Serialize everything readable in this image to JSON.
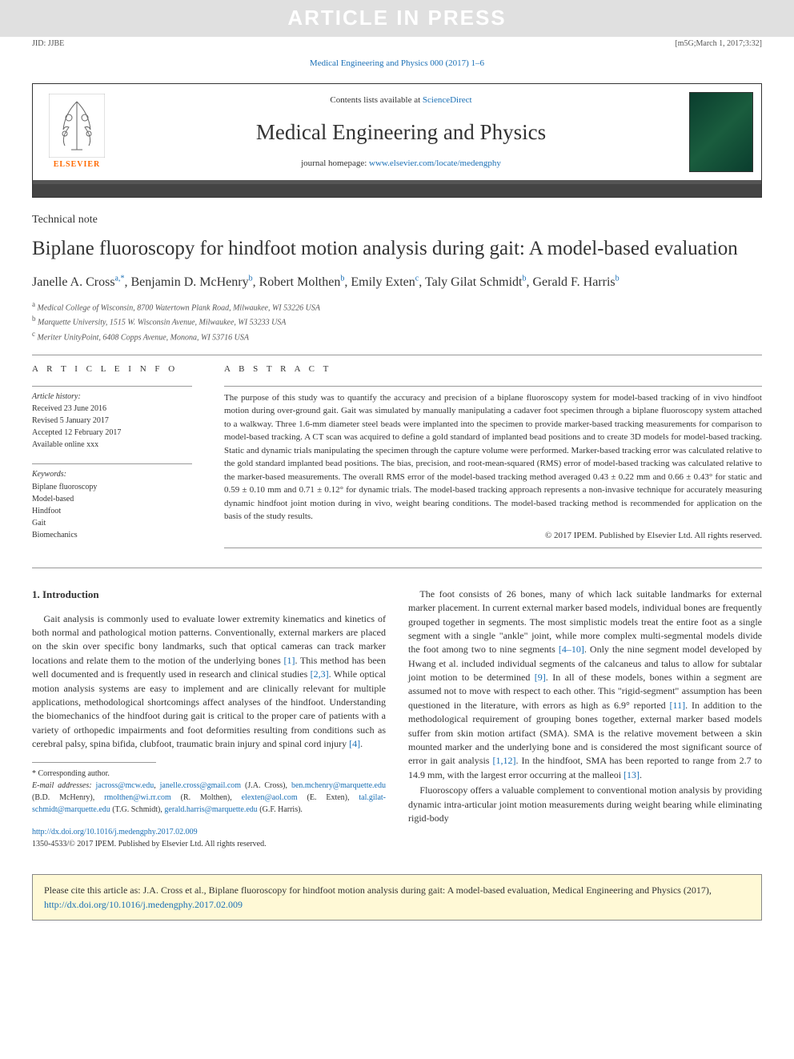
{
  "banner": {
    "watermark": "ARTICLE IN PRESS",
    "jid": "JID: JJBE",
    "version": "[m5G;March 1, 2017;3:32]",
    "citation": "Medical Engineering and Physics 000 (2017) 1–6"
  },
  "header": {
    "contents_prefix": "Contents lists available at ",
    "contents_link": "ScienceDirect",
    "journal": "Medical Engineering and Physics",
    "homepage_prefix": "journal homepage: ",
    "homepage_link": "www.elsevier.com/locate/medengphy",
    "elsevier": "ELSEVIER"
  },
  "article": {
    "type": "Technical note",
    "title": "Biplane fluoroscopy for hindfoot motion analysis during gait: A model-based evaluation",
    "authors_html": "Janelle A. Cross<sup>a,*</sup>, Benjamin D. McHenry<sup>b</sup>, Robert Molthen<sup>b</sup>, Emily Exten<sup>c</sup>, Taly Gilat Schmidt<sup>b</sup>, Gerald F. Harris<sup>b</sup>",
    "affiliations": [
      {
        "sup": "a",
        "text": "Medical College of Wisconsin, 8700 Watertown Plank Road, Milwaukee, WI 53226 USA"
      },
      {
        "sup": "b",
        "text": "Marquette University, 1515 W. Wisconsin Avenue, Milwaukee, WI 53233 USA"
      },
      {
        "sup": "c",
        "text": "Meriter UnityPoint, 6408 Copps Avenue, Monona, WI 53716 USA"
      }
    ]
  },
  "info": {
    "heading": "A R T I C L E   I N F O",
    "history_label": "Article history:",
    "history": [
      "Received 23 June 2016",
      "Revised 5 January 2017",
      "Accepted 12 February 2017",
      "Available online xxx"
    ],
    "keywords_label": "Keywords:",
    "keywords": [
      "Biplane fluoroscopy",
      "Model-based",
      "Hindfoot",
      "Gait",
      "Biomechanics"
    ]
  },
  "abstract": {
    "heading": "A B S T R A C T",
    "text": "The purpose of this study was to quantify the accuracy and precision of a biplane fluoroscopy system for model-based tracking of in vivo hindfoot motion during over-ground gait. Gait was simulated by manually manipulating a cadaver foot specimen through a biplane fluoroscopy system attached to a walkway. Three 1.6-mm diameter steel beads were implanted into the specimen to provide marker-based tracking measurements for comparison to model-based tracking. A CT scan was acquired to define a gold standard of implanted bead positions and to create 3D models for model-based tracking. Static and dynamic trials manipulating the specimen through the capture volume were performed. Marker-based tracking error was calculated relative to the gold standard implanted bead positions. The bias, precision, and root-mean-squared (RMS) error of model-based tracking was calculated relative to the marker-based measurements. The overall RMS error of the model-based tracking method averaged 0.43 ± 0.22 mm and 0.66 ± 0.43° for static and 0.59 ± 0.10 mm and 0.71 ± 0.12° for dynamic trials. The model-based tracking approach represents a non-invasive technique for accurately measuring dynamic hindfoot joint motion during in vivo, weight bearing conditions. The model-based tracking method is recommended for application on the basis of the study results.",
    "copyright": "© 2017 IPEM. Published by Elsevier Ltd. All rights reserved."
  },
  "body": {
    "section1_heading": "1. Introduction",
    "col1_p1": "Gait analysis is commonly used to evaluate lower extremity kinematics and kinetics of both normal and pathological motion patterns. Conventionally, external markers are placed on the skin over specific bony landmarks, such that optical cameras can track marker locations and relate them to the motion of the underlying bones [1]. This method has been well documented and is frequently used in research and clinical studies [2,3]. While optical motion analysis systems are easy to implement and are clinically relevant for multiple applications, methodological shortcomings affect analyses of the hindfoot. Understanding the biomechanics of the hindfoot during gait is critical to the proper care of patients with a variety of orthopedic impairments and foot deformities resulting from conditions such as cerebral palsy, spina bifida, clubfoot, traumatic brain injury and spinal cord injury [4].",
    "col2_p1": "The foot consists of 26 bones, many of which lack suitable landmarks for external marker placement. In current external marker based models, individual bones are frequently grouped together in segments. The most simplistic models treat the entire foot as a single segment with a single \"ankle\" joint, while more complex multi-segmental models divide the foot among two to nine segments [4–10]. Only the nine segment model developed by Hwang et al. included individual segments of the calcaneus and talus to allow for subtalar joint motion to be determined [9]. In all of these models, bones within a segment are assumed not to move with respect to each other. This \"rigid-segment\" assumption has been questioned in the literature, with errors as high as 6.9° reported [11]. In addition to the methodological requirement of grouping bones together, external marker based models suffer from skin motion artifact (SMA). SMA is the relative movement between a skin mounted marker and the underlying bone and is considered the most significant source of error in gait analysis [1,12]. In the hindfoot, SMA has been reported to range from 2.7 to 14.9 mm, with the largest error occurring at the malleoi [13].",
    "col2_p2": "Fluoroscopy offers a valuable complement to conventional motion analysis by providing dynamic intra-articular joint motion measurements during weight bearing while eliminating rigid-body"
  },
  "footnotes": {
    "corr": "* Corresponding author.",
    "email_label": "E-mail addresses:",
    "emails": [
      {
        "email": "jacross@mcw.edu",
        "sep": ", "
      },
      {
        "email": "janelle.cross@gmail.com",
        "who": " (J.A. Cross), "
      },
      {
        "email": "ben.mchenry@marquette.edu",
        "who": " (B.D. McHenry), "
      },
      {
        "email": "rmolthen@wi.rr.com",
        "who": " (R. Molthen), "
      },
      {
        "email": "elexten@aol.com",
        "who": " (E. Exten), "
      },
      {
        "email": "tal.gilat-schmidt@marquette.edu",
        "who": " (T.G. Schmidt), "
      },
      {
        "email": "gerald.harris@marquette.edu",
        "who": " (G.F. Harris)."
      }
    ]
  },
  "doi": {
    "link": "http://dx.doi.org/10.1016/j.medengphy.2017.02.009",
    "issn": "1350-4533/© 2017 IPEM. Published by Elsevier Ltd. All rights reserved."
  },
  "citebox": {
    "prefix": "Please cite this article as: J.A. Cross et al., Biplane fluoroscopy for hindfoot motion analysis during gait: A model-based evaluation, Medical Engineering and Physics (2017), ",
    "link": "http://dx.doi.org/10.1016/j.medengphy.2017.02.009"
  },
  "colors": {
    "link": "#1a6fb5",
    "banner_bg": "#e0e0e0",
    "elsevier_orange": "#ff6a00",
    "citebox_bg": "#fff9d6"
  }
}
